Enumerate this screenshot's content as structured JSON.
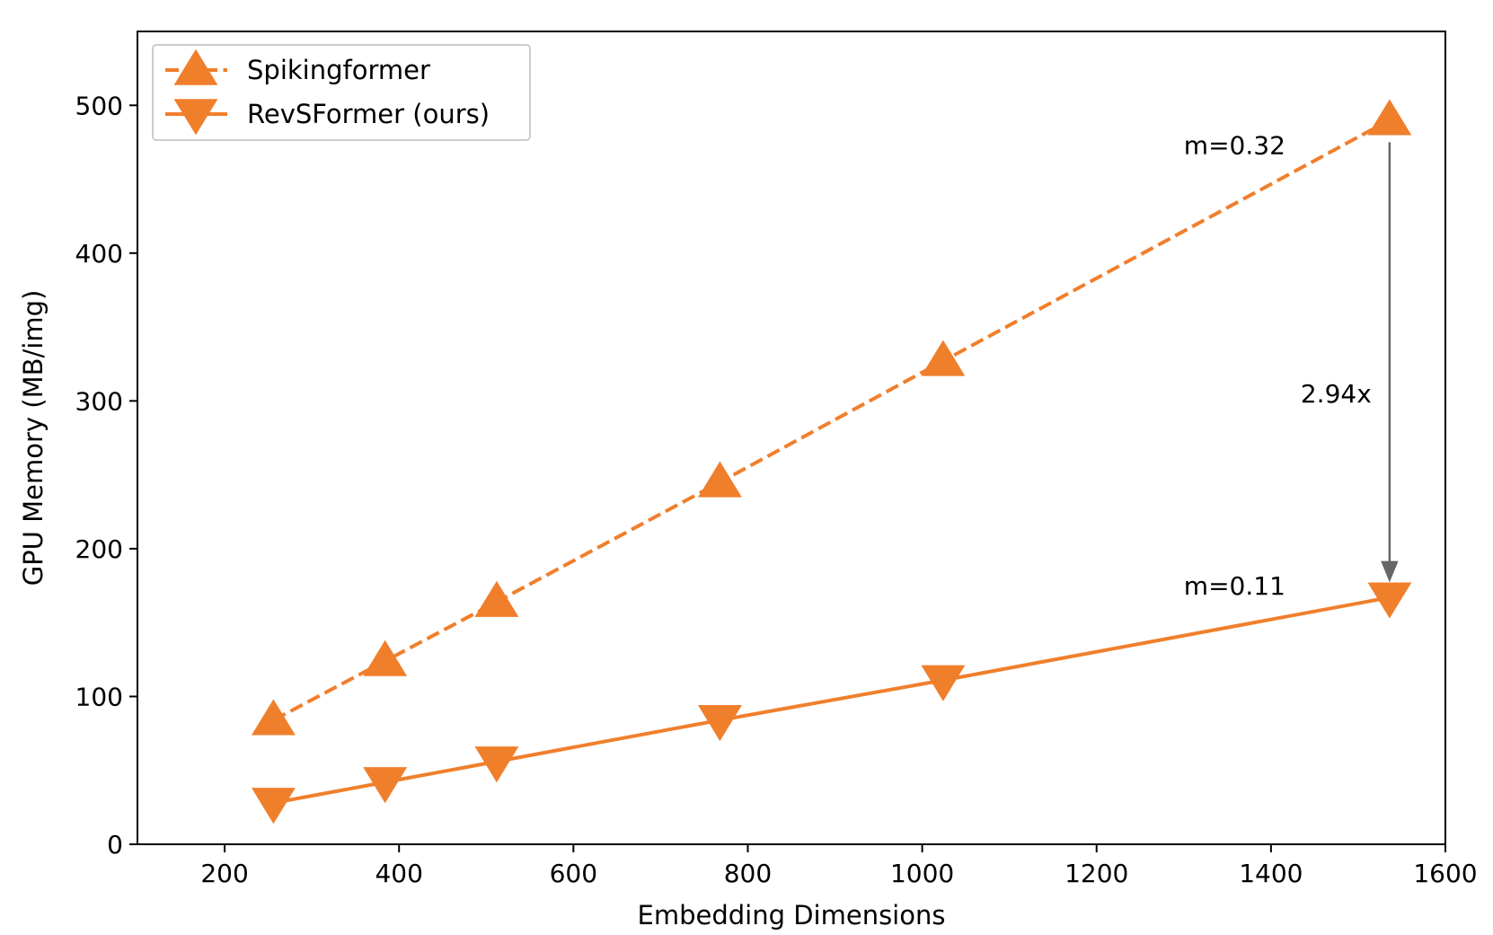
{
  "chart_data": {
    "type": "line",
    "xlabel": "Embedding Dimensions",
    "ylabel": "GPU Memory (MB/img)",
    "xlim": [
      100,
      1600
    ],
    "ylim": [
      0,
      550
    ],
    "xticks": [
      200,
      400,
      600,
      800,
      1000,
      1200,
      1400,
      1600
    ],
    "yticks": [
      0,
      100,
      200,
      300,
      400,
      500
    ],
    "grid": false,
    "legend_position": "top-left",
    "series": [
      {
        "name": "Spikingformer",
        "style": "dashed",
        "marker": "triangle-up",
        "color": "#F07F2C",
        "x": [
          256,
          384,
          512,
          768,
          1024,
          1536
        ],
        "y": [
          84,
          124,
          164,
          245,
          327,
          490
        ]
      },
      {
        "name": "RevSFormer (ours)",
        "style": "solid",
        "marker": "triangle-down",
        "color": "#F07F2C",
        "x": [
          256,
          384,
          512,
          768,
          1024,
          1536
        ],
        "y": [
          28,
          42,
          56,
          84,
          111,
          167
        ]
      }
    ],
    "annotations": [
      {
        "text": "m=0.32",
        "x": 1300,
        "y": 473
      },
      {
        "text": "m=0.11",
        "x": 1300,
        "y": 175
      },
      {
        "text": "2.94x",
        "x": 1434,
        "y": 305
      }
    ],
    "arrow": {
      "x": 1536,
      "y_from": 475,
      "y_to": 178,
      "color": "#666666"
    }
  }
}
